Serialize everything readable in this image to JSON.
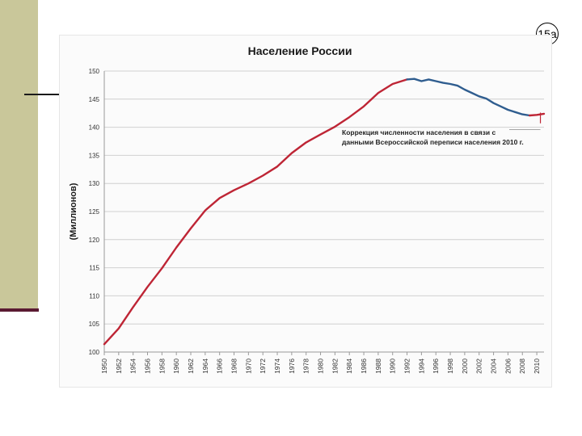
{
  "slide": {
    "number": "15а"
  },
  "chart_data": {
    "type": "line",
    "title": "Население России",
    "ylabel": "(Миллионов)",
    "xlabel": "",
    "ylim": [
      100,
      150
    ],
    "xlim": [
      1950,
      2011
    ],
    "yticks": [
      100,
      105,
      110,
      115,
      120,
      125,
      130,
      135,
      140,
      145,
      150
    ],
    "xticks": [
      1950,
      1952,
      1954,
      1956,
      1958,
      1960,
      1962,
      1964,
      1966,
      1968,
      1970,
      1972,
      1974,
      1976,
      1978,
      1980,
      1982,
      1984,
      1986,
      1988,
      1990,
      1992,
      1994,
      1996,
      1998,
      2000,
      2002,
      2004,
      2006,
      2008,
      2010
    ],
    "grid": true,
    "annotation": {
      "lines": [
        "Коррекция численности населения в связи с",
        "данными Всероссийской переписи населения 2010 г."
      ],
      "x": 2010.5,
      "y": 140
    },
    "series": [
      {
        "color": "#be2535",
        "x": [
          1950,
          1952,
          1954,
          1956,
          1958,
          1960,
          1962,
          1964,
          1966,
          1968,
          1970,
          1972,
          1974,
          1976,
          1978,
          1980,
          1982,
          1984,
          1986,
          1988,
          1990,
          1992
        ],
        "values": [
          101.4,
          104.2,
          108,
          111.6,
          114.9,
          118.6,
          122,
          125.2,
          127.4,
          128.8,
          130,
          131.4,
          133,
          135.4,
          137.3,
          138.7,
          140.1,
          141.8,
          143.7,
          146.1,
          147.7,
          148.5
        ]
      },
      {
        "color": "#2f5d8f",
        "x": [
          1992,
          1993,
          1994,
          1995,
          1996,
          1997,
          1998,
          1999,
          2000,
          2001,
          2002,
          2003,
          2004,
          2005,
          2006,
          2007,
          2008,
          2009
        ],
        "values": [
          148.5,
          148.6,
          148.2,
          148.5,
          148.2,
          147.9,
          147.7,
          147.4,
          146.7,
          146.1,
          145.5,
          145.1,
          144.3,
          143.7,
          143.1,
          142.7,
          142.3,
          142.1
        ]
      },
      {
        "color": "#be2535",
        "x": [
          2009,
          2010,
          2011
        ],
        "values": [
          142.1,
          142.2,
          142.4
        ]
      }
    ]
  }
}
